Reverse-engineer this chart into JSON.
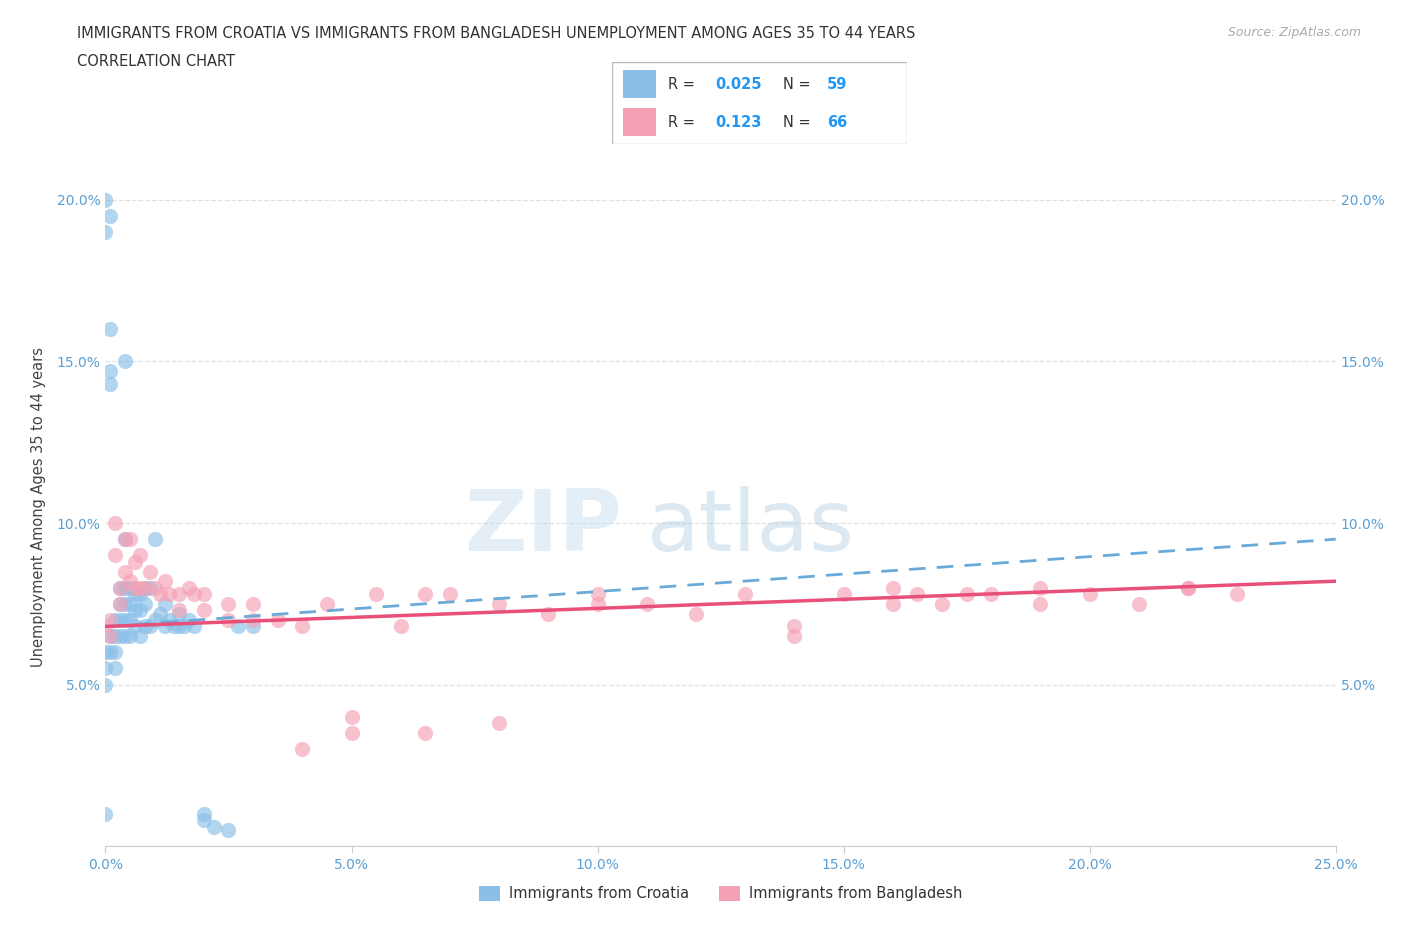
{
  "title_line1": "IMMIGRANTS FROM CROATIA VS IMMIGRANTS FROM BANGLADESH UNEMPLOYMENT AMONG AGES 35 TO 44 YEARS",
  "title_line2": "CORRELATION CHART",
  "source_text": "Source: ZipAtlas.com",
  "ylabel": "Unemployment Among Ages 35 to 44 years",
  "xlim": [
    0.0,
    0.25
  ],
  "ylim": [
    0.0,
    0.21
  ],
  "yticks": [
    0.0,
    0.05,
    0.1,
    0.15,
    0.2
  ],
  "xticks": [
    0.0,
    0.05,
    0.1,
    0.15,
    0.2,
    0.25
  ],
  "croatia_color": "#89bfe8",
  "bangladesh_color": "#f4a0b5",
  "croatia_R": 0.025,
  "croatia_N": 59,
  "bangladesh_R": 0.123,
  "bangladesh_N": 66,
  "croatia_line_color": "#6aaad8",
  "bangladesh_line_color": "#e8507a",
  "axis_color": "#5a9fd4",
  "grid_color": "#dddddd",
  "title_color": "#333333",
  "croatia_x": [
    0.0,
    0.0,
    0.0,
    0.0,
    0.0,
    0.001,
    0.001,
    0.001,
    0.001,
    0.002,
    0.002,
    0.002,
    0.002,
    0.003,
    0.003,
    0.003,
    0.003,
    0.004,
    0.004,
    0.004,
    0.004,
    0.005,
    0.005,
    0.005,
    0.005,
    0.006,
    0.006,
    0.006,
    0.007,
    0.007,
    0.007,
    0.008,
    0.008,
    0.008,
    0.009,
    0.009,
    0.01,
    0.01,
    0.011,
    0.012,
    0.012,
    0.013,
    0.014,
    0.015,
    0.015,
    0.016,
    0.017,
    0.018,
    0.02,
    0.02,
    0.022,
    0.025,
    0.027,
    0.03,
    0.004,
    0.004,
    0.001,
    0.001,
    0.0
  ],
  "croatia_y": [
    0.2,
    0.19,
    0.06,
    0.055,
    0.05,
    0.195,
    0.16,
    0.065,
    0.06,
    0.07,
    0.065,
    0.06,
    0.055,
    0.08,
    0.075,
    0.07,
    0.065,
    0.08,
    0.075,
    0.07,
    0.065,
    0.08,
    0.075,
    0.07,
    0.065,
    0.078,
    0.073,
    0.068,
    0.078,
    0.073,
    0.065,
    0.08,
    0.075,
    0.068,
    0.08,
    0.068,
    0.095,
    0.07,
    0.072,
    0.075,
    0.068,
    0.07,
    0.068,
    0.072,
    0.068,
    0.068,
    0.07,
    0.068,
    0.01,
    0.008,
    0.006,
    0.005,
    0.068,
    0.068,
    0.15,
    0.095,
    0.147,
    0.143,
    0.01
  ],
  "bangladesh_x": [
    0.0,
    0.001,
    0.001,
    0.002,
    0.002,
    0.003,
    0.003,
    0.004,
    0.004,
    0.005,
    0.005,
    0.006,
    0.006,
    0.007,
    0.007,
    0.008,
    0.009,
    0.01,
    0.011,
    0.012,
    0.013,
    0.015,
    0.015,
    0.017,
    0.018,
    0.02,
    0.02,
    0.025,
    0.025,
    0.03,
    0.03,
    0.035,
    0.04,
    0.045,
    0.05,
    0.055,
    0.06,
    0.065,
    0.07,
    0.08,
    0.09,
    0.1,
    0.1,
    0.11,
    0.12,
    0.13,
    0.14,
    0.15,
    0.16,
    0.165,
    0.17,
    0.175,
    0.18,
    0.19,
    0.2,
    0.21,
    0.22,
    0.23,
    0.04,
    0.05,
    0.065,
    0.08,
    0.14,
    0.16,
    0.19,
    0.22
  ],
  "bangladesh_y": [
    0.068,
    0.07,
    0.065,
    0.1,
    0.09,
    0.08,
    0.075,
    0.095,
    0.085,
    0.095,
    0.082,
    0.088,
    0.08,
    0.09,
    0.08,
    0.08,
    0.085,
    0.08,
    0.078,
    0.082,
    0.078,
    0.078,
    0.073,
    0.08,
    0.078,
    0.078,
    0.073,
    0.075,
    0.07,
    0.075,
    0.07,
    0.07,
    0.068,
    0.075,
    0.035,
    0.078,
    0.068,
    0.078,
    0.078,
    0.075,
    0.072,
    0.078,
    0.075,
    0.075,
    0.072,
    0.078,
    0.068,
    0.078,
    0.075,
    0.078,
    0.075,
    0.078,
    0.078,
    0.075,
    0.078,
    0.075,
    0.08,
    0.078,
    0.03,
    0.04,
    0.035,
    0.038,
    0.065,
    0.08,
    0.08,
    0.08
  ],
  "croatia_trend_x0": 0.0,
  "croatia_trend_y0": 0.068,
  "croatia_trend_x1": 0.25,
  "croatia_trend_y1": 0.095,
  "bangladesh_trend_x0": 0.0,
  "bangladesh_trend_y0": 0.068,
  "bangladesh_trend_x1": 0.25,
  "bangladesh_trend_y1": 0.082
}
